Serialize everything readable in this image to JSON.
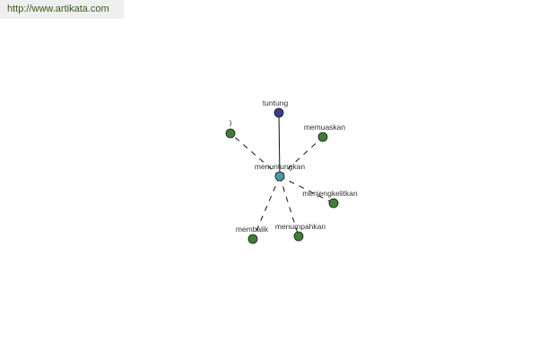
{
  "site_link": "http://www.artikata.com",
  "graph": {
    "center": {
      "label": "menuntungkan",
      "color": "#4a9aa0"
    },
    "nodes": [
      {
        "label": "tuntung",
        "color": "#3a3d8f",
        "edge": "solid"
      },
      {
        "label": ")",
        "color": "#3f7f34",
        "edge": "dashed"
      },
      {
        "label": "memuaskan",
        "color": "#3f7f34",
        "edge": "dashed"
      },
      {
        "label": "menjengkelitkan",
        "color": "#3f7f34",
        "edge": "dashed"
      },
      {
        "label": "menumpahkan",
        "color": "#3f7f34",
        "edge": "dashed"
      },
      {
        "label": "membalik",
        "color": "#3f7f34",
        "edge": "dashed"
      }
    ]
  }
}
